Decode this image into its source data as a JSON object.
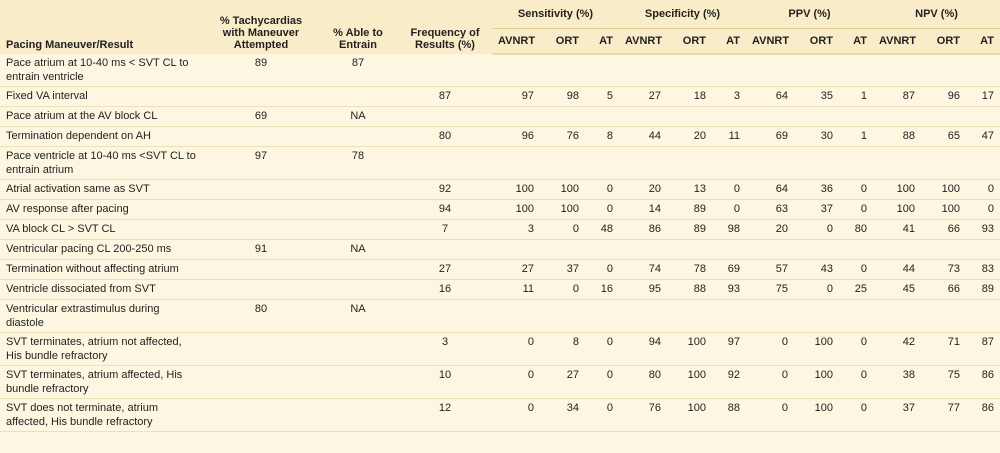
{
  "table": {
    "header": {
      "label": "Pacing Maneuver/Result",
      "attempted": "% Tachycardias with Maneuver Attempted",
      "entrain": "% Able to Entrain",
      "frequency": "Frequency of Results (%)",
      "groups": [
        {
          "title": "Sensitivity (%)",
          "subcolumns": [
            "AVNRT",
            "ORT",
            "AT"
          ]
        },
        {
          "title": "Specificity (%)",
          "subcolumns": [
            "AVNRT",
            "ORT",
            "AT"
          ]
        },
        {
          "title": "PPV (%)",
          "subcolumns": [
            "AVNRT",
            "ORT",
            "AT"
          ]
        },
        {
          "title": "NPV (%)",
          "subcolumns": [
            "AVNRT",
            "ORT",
            "AT"
          ]
        }
      ]
    },
    "rows": [
      [
        "Pace atrium at 10-40 ms < SVT CL to entrain ventricle",
        89,
        87,
        null,
        null,
        null,
        null,
        null,
        null,
        null,
        null,
        null,
        null,
        null,
        null,
        null
      ],
      [
        "Fixed VA interval",
        null,
        null,
        87,
        97,
        98,
        5,
        27,
        18,
        3,
        64,
        35,
        1,
        87,
        96,
        17
      ],
      [
        "Pace atrium at the AV block CL",
        69,
        "NA",
        null,
        null,
        null,
        null,
        null,
        null,
        null,
        null,
        null,
        null,
        null,
        null,
        null
      ],
      [
        "Termination dependent on AH",
        null,
        null,
        80,
        96,
        76,
        8,
        44,
        20,
        11,
        69,
        30,
        1,
        88,
        65,
        47
      ],
      [
        "Pace ventricle at 10-40 ms <SVT CL to entrain atrium",
        97,
        78,
        null,
        null,
        null,
        null,
        null,
        null,
        null,
        null,
        null,
        null,
        null,
        null,
        null
      ],
      [
        "Atrial activation same as SVT",
        null,
        null,
        92,
        100,
        100,
        0,
        20,
        13,
        0,
        64,
        36,
        0,
        100,
        100,
        0
      ],
      [
        "AV response after pacing",
        null,
        null,
        94,
        100,
        100,
        0,
        14,
        89,
        0,
        63,
        37,
        0,
        100,
        100,
        0
      ],
      [
        "VA block CL > SVT CL",
        null,
        null,
        7,
        3,
        0,
        48,
        86,
        89,
        98,
        20,
        0,
        80,
        41,
        66,
        93
      ],
      [
        "Ventricular pacing CL 200-250 ms",
        91,
        "NA",
        null,
        null,
        null,
        null,
        null,
        null,
        null,
        null,
        null,
        null,
        null,
        null,
        null
      ],
      [
        "Termination without affecting atrium",
        null,
        null,
        27,
        27,
        37,
        0,
        74,
        78,
        69,
        57,
        43,
        0,
        44,
        73,
        83
      ],
      [
        "Ventricle dissociated from SVT",
        null,
        null,
        16,
        11,
        0,
        16,
        95,
        88,
        93,
        75,
        0,
        25,
        45,
        66,
        89
      ],
      [
        "Ventricular extrastimulus during diastole",
        80,
        "NA",
        null,
        null,
        null,
        null,
        null,
        null,
        null,
        null,
        null,
        null,
        null,
        null,
        null
      ],
      [
        "SVT terminates, atrium not affected, His bundle refractory",
        null,
        null,
        3,
        0,
        8,
        0,
        94,
        100,
        97,
        0,
        100,
        0,
        42,
        71,
        87
      ],
      [
        "SVT terminates, atrium affected, His bundle refractory",
        null,
        null,
        10,
        0,
        27,
        0,
        80,
        100,
        92,
        0,
        100,
        0,
        38,
        75,
        86
      ],
      [
        "SVT does not terminate, atrium affected, His bundle refractory",
        null,
        null,
        12,
        0,
        34,
        0,
        76,
        100,
        88,
        0,
        100,
        0,
        37,
        77,
        86
      ]
    ]
  }
}
